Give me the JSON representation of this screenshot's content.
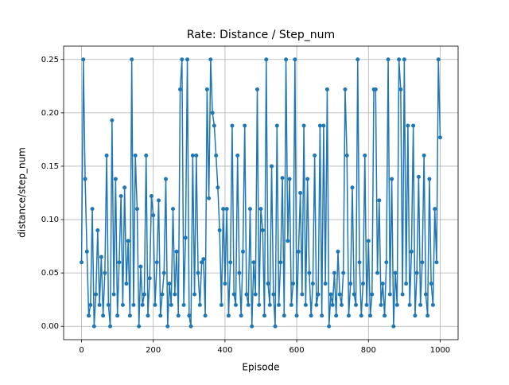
{
  "chart_data": {
    "type": "line",
    "title": "Rate: Distance / Step_num",
    "xlabel": "Episode",
    "ylabel": "distance/step_num",
    "xlim": [
      -50,
      1050
    ],
    "ylim": [
      -0.0125,
      0.2625
    ],
    "xticks": [
      0,
      200,
      400,
      600,
      800,
      1000
    ],
    "yticks": [
      {
        "value": 0,
        "label": "0.00"
      },
      {
        "value": 0.05,
        "label": "0.05"
      },
      {
        "value": 0.1,
        "label": "0.10"
      },
      {
        "value": 0.15,
        "label": "0.15"
      },
      {
        "value": 0.2,
        "label": "0.20"
      },
      {
        "value": 0.25,
        "label": "0.25"
      }
    ],
    "grid": true,
    "x": [
      0,
      5,
      10,
      15,
      20,
      25,
      30,
      35,
      40,
      45,
      50,
      55,
      60,
      65,
      70,
      75,
      80,
      85,
      90,
      95,
      100,
      105,
      110,
      115,
      120,
      125,
      130,
      135,
      140,
      145,
      150,
      155,
      160,
      165,
      170,
      175,
      180,
      185,
      190,
      195,
      200,
      205,
      210,
      215,
      220,
      225,
      230,
      235,
      240,
      245,
      250,
      255,
      260,
      265,
      270,
      275,
      280,
      285,
      290,
      295,
      300,
      305,
      310,
      315,
      320,
      325,
      330,
      335,
      340,
      345,
      350,
      355,
      360,
      365,
      370,
      375,
      380,
      385,
      390,
      395,
      400,
      405,
      410,
      415,
      420,
      425,
      430,
      435,
      440,
      445,
      450,
      455,
      460,
      465,
      470,
      475,
      480,
      485,
      490,
      495,
      500,
      505,
      510,
      515,
      520,
      525,
      530,
      535,
      540,
      545,
      550,
      555,
      560,
      565,
      570,
      575,
      580,
      585,
      590,
      595,
      600,
      605,
      610,
      615,
      620,
      625,
      630,
      635,
      640,
      645,
      650,
      655,
      660,
      665,
      670,
      675,
      680,
      685,
      690,
      695,
      700,
      705,
      710,
      715,
      720,
      725,
      730,
      735,
      740,
      745,
      750,
      755,
      760,
      765,
      770,
      775,
      780,
      785,
      790,
      795,
      800,
      805,
      810,
      815,
      820,
      825,
      830,
      835,
      840,
      845,
      850,
      855,
      860,
      865,
      870,
      875,
      880,
      885,
      890,
      895,
      900,
      905,
      910,
      915,
      920,
      925,
      930,
      935,
      940,
      945,
      950,
      955,
      960,
      965,
      970,
      975,
      980,
      985,
      990,
      995,
      1000
    ],
    "series": [
      {
        "color": "#1f77b4",
        "values": [
          0.06,
          0.25,
          0.138,
          0.07,
          0.01,
          0.02,
          0.11,
          0.0,
          0.03,
          0.09,
          0.02,
          0.065,
          0.01,
          0.05,
          0.16,
          0.02,
          0.0,
          0.193,
          0.03,
          0.138,
          0.01,
          0.06,
          0.122,
          0.02,
          0.13,
          0.04,
          0.08,
          0.01,
          0.25,
          0.02,
          0.16,
          0.11,
          0.0,
          0.056,
          0.02,
          0.03,
          0.16,
          0.01,
          0.045,
          0.122,
          0.104,
          0.02,
          0.06,
          0.118,
          0.01,
          0.03,
          0.05,
          0.138,
          0.0,
          0.04,
          0.02,
          0.11,
          0.03,
          0.07,
          0.01,
          0.222,
          0.25,
          0.02,
          0.083,
          0.25,
          0.01,
          0.0,
          0.16,
          0.03,
          0.16,
          0.05,
          0.02,
          0.06,
          0.063,
          0.01,
          0.222,
          0.12,
          0.25,
          0.2,
          0.188,
          0.16,
          0.13,
          0.09,
          0.02,
          0.11,
          0.04,
          0.11,
          0.01,
          0.06,
          0.188,
          0.03,
          0.02,
          0.16,
          0.05,
          0.01,
          0.07,
          0.188,
          0.03,
          0.02,
          0.11,
          0.0,
          0.06,
          0.03,
          0.222,
          0.02,
          0.11,
          0.09,
          0.01,
          0.25,
          0.04,
          0.02,
          0.15,
          0.03,
          0.0,
          0.188,
          0.02,
          0.06,
          0.139,
          0.01,
          0.25,
          0.08,
          0.138,
          0.02,
          0.04,
          0.25,
          0.01,
          0.07,
          0.125,
          0.03,
          0.188,
          0.02,
          0.138,
          0.05,
          0.01,
          0.04,
          0.16,
          0.02,
          0.03,
          0.188,
          0.01,
          0.188,
          0.04,
          0.222,
          0.0,
          0.03,
          0.02,
          0.05,
          0.01,
          0.07,
          0.03,
          0.02,
          0.05,
          0.222,
          0.16,
          0.01,
          0.04,
          0.13,
          0.03,
          0.02,
          0.25,
          0.06,
          0.01,
          0.04,
          0.16,
          0.02,
          0.08,
          0.01,
          0.03,
          0.222,
          0.222,
          0.05,
          0.118,
          0.02,
          0.04,
          0.01,
          0.06,
          0.25,
          0.03,
          0.138,
          0.0,
          0.05,
          0.02,
          0.25,
          0.222,
          0.03,
          0.25,
          0.04,
          0.188,
          0.02,
          0.07,
          0.188,
          0.01,
          0.05,
          0.14,
          0.02,
          0.06,
          0.16,
          0.03,
          0.01,
          0.138,
          0.04,
          0.02,
          0.11,
          0.06,
          0.25,
          0.177
        ]
      }
    ]
  }
}
